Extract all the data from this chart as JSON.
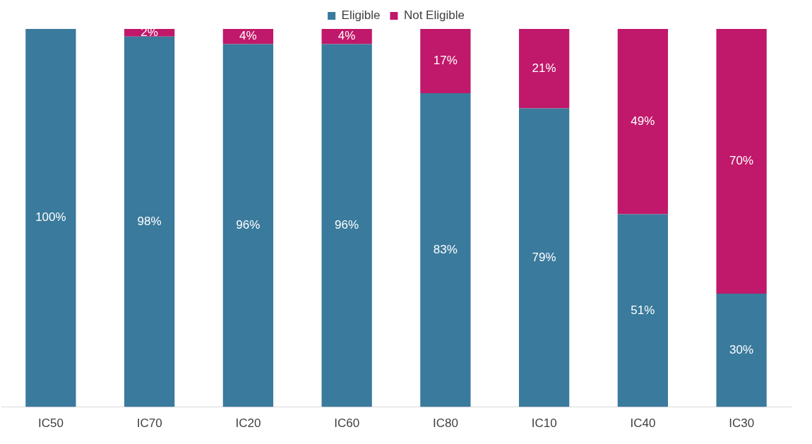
{
  "chart_data": {
    "type": "bar",
    "stacked": true,
    "legend": "top",
    "grid": false,
    "tick_labels": "x",
    "categories": [
      "IC50",
      "IC70",
      "IC20",
      "IC60",
      "IC80",
      "IC10",
      "IC40",
      "IC30"
    ],
    "series": [
      {
        "name": "Eligible",
        "color": "#3a7a9c",
        "values": [
          100,
          98,
          96,
          96,
          83,
          79,
          51,
          30
        ],
        "value_labels": [
          "100%",
          "98%",
          "96%",
          "96%",
          "83%",
          "79%",
          "51%",
          "30%"
        ]
      },
      {
        "name": "Not Eligible",
        "color": "#c0186a",
        "values": [
          0,
          2,
          4,
          4,
          17,
          21,
          49,
          70
        ],
        "value_labels": [
          null,
          "2%",
          "4%",
          "4%",
          "17%",
          "21%",
          "49%",
          "70%"
        ]
      }
    ]
  }
}
